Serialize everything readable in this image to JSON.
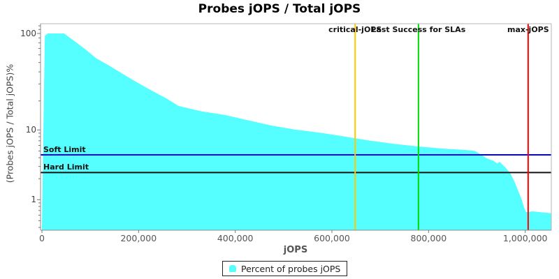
{
  "chart_data": {
    "type": "area",
    "title": "Probes jOPS / Total jOPS",
    "xlabel": "jOPS",
    "ylabel": "(Probes jOPS / Total jOPS)%",
    "y_scale": "log",
    "xlim": [
      0,
      1054000
    ],
    "ylim": [
      0.37,
      125
    ],
    "grid": false,
    "x_ticks": [
      {
        "value": 0,
        "label": "0"
      },
      {
        "value": 200000,
        "label": "200,000"
      },
      {
        "value": 400000,
        "label": "400,000"
      },
      {
        "value": 600000,
        "label": "600,000"
      },
      {
        "value": 800000,
        "label": "800,000"
      },
      {
        "value": 1000000,
        "label": "1,000,000"
      }
    ],
    "y_major_ticks": [
      {
        "value": 100,
        "label": "100"
      },
      {
        "value": 10,
        "label": "10"
      },
      {
        "value": 1,
        "label": "1"
      }
    ],
    "y_minor_ticks": [
      120,
      110,
      90,
      80,
      70,
      60,
      50,
      40,
      30,
      20,
      9,
      8,
      7,
      6,
      5,
      4,
      3,
      2,
      0.9,
      0.8,
      0.7,
      0.6,
      0.5,
      0.4
    ],
    "series": [
      {
        "name": "Percent of probes jOPS",
        "type": "area",
        "color": "#55FFFF",
        "points": [
          [
            0,
            0.4
          ],
          [
            6000,
            95
          ],
          [
            12000,
            100
          ],
          [
            46000,
            100
          ],
          [
            65000,
            85
          ],
          [
            89000,
            69
          ],
          [
            113000,
            55
          ],
          [
            137000,
            47
          ],
          [
            162000,
            39.5
          ],
          [
            186000,
            33.5
          ],
          [
            210000,
            28.5
          ],
          [
            234000,
            24.5
          ],
          [
            258000,
            21.2
          ],
          [
            282000,
            17.8
          ],
          [
            330000,
            15.6
          ],
          [
            378000,
            14.3
          ],
          [
            426000,
            12.6
          ],
          [
            475000,
            11.1
          ],
          [
            523000,
            10.1
          ],
          [
            571000,
            9.2
          ],
          [
            610000,
            8.4
          ],
          [
            648000,
            7.6
          ],
          [
            680000,
            7.0
          ],
          [
            730000,
            6.3
          ],
          [
            779000,
            5.8
          ],
          [
            830000,
            5.4
          ],
          [
            872000,
            5.2
          ],
          [
            896000,
            5.0
          ],
          [
            921000,
            3.9
          ],
          [
            935000,
            3.6
          ],
          [
            942000,
            3.3
          ],
          [
            947000,
            3.5
          ],
          [
            959000,
            2.9
          ],
          [
            969000,
            2.4
          ],
          [
            978000,
            1.8
          ],
          [
            985000,
            1.36
          ],
          [
            992000,
            1.03
          ],
          [
            998000,
            0.76
          ],
          [
            1002000,
            0.66
          ],
          [
            1015000,
            0.68
          ],
          [
            1054000,
            0.64
          ]
        ]
      }
    ],
    "vlines": [
      {
        "label": "critical-jOPS",
        "x": 648000,
        "color": "#FFC800"
      },
      {
        "label": "Last Success for SLAs",
        "x": 779000,
        "color": "#00DC00"
      },
      {
        "label": "max-jOPS",
        "x": 1006000,
        "color": "#FF0000"
      }
    ],
    "hlines": [
      {
        "label": "Soft Limit",
        "y": 4.4,
        "color": "#0000FF"
      },
      {
        "label": "Hard Limit",
        "y": 2.45,
        "color": "#111111"
      }
    ],
    "legend": {
      "position": "bottom",
      "entries": [
        {
          "label": "Percent of probes jOPS",
          "color": "#55FFFF"
        }
      ]
    }
  }
}
